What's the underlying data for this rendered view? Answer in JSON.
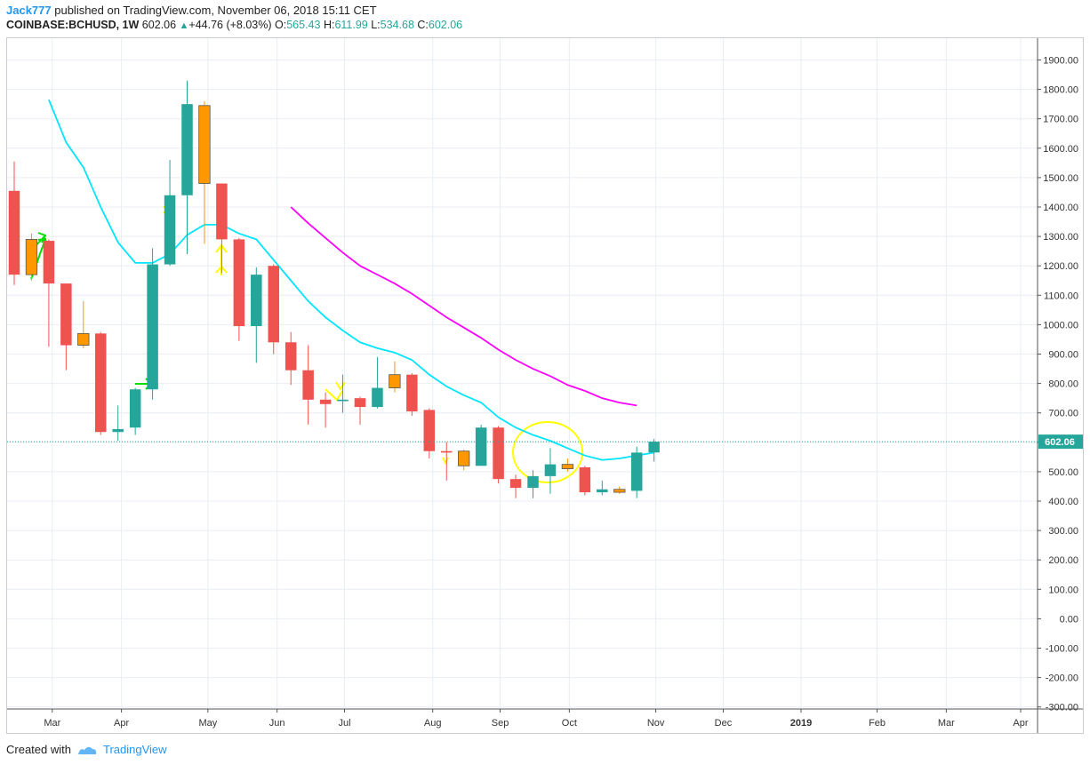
{
  "header": {
    "author": "Jack777",
    "published": " published on TradingView.com, November 06, 2018 15:11 CET",
    "symbol": "COINBASE:BCHUSD, 1W",
    "last": "602.06",
    "change": "+44.76 (+8.03%)",
    "o_label": "O:",
    "o_val": "565.43",
    "h_label": "H:",
    "h_val": "611.99",
    "l_label": "L:",
    "l_val": "534.68",
    "c_label": "C:",
    "c_val": "602.06"
  },
  "footer": {
    "created": "Created with",
    "brand": "TradingView"
  },
  "colors": {
    "up": "#26a69a",
    "down": "#ef5350",
    "highlight": "#ff9800",
    "ma_short": "#00e5ff",
    "ma_long": "#ff00ff",
    "grid": "#e8eef3",
    "last_line": "#26a69a",
    "circle": "#ffff00"
  },
  "chart_data": {
    "type": "candlestick",
    "title": "COINBASE:BCHUSD, 1W",
    "ylim": [
      -300,
      1900
    ],
    "y_ticks": [
      "1900.00",
      "1800.00",
      "1700.00",
      "1600.00",
      "1500.00",
      "1400.00",
      "1300.00",
      "1200.00",
      "1100.00",
      "1000.00",
      "900.00",
      "800.00",
      "700.00",
      "600.00",
      "500.00",
      "400.00",
      "300.00",
      "200.00",
      "100.00",
      "0.00",
      "-100.00",
      "-200.00",
      "-300.00"
    ],
    "x_ticks": [
      {
        "label": "Mar",
        "week": 2.2
      },
      {
        "label": "Apr",
        "week": 6.2
      },
      {
        "label": "May",
        "week": 11.2
      },
      {
        "label": "Jun",
        "week": 15.2
      },
      {
        "label": "Jul",
        "week": 19.1
      },
      {
        "label": "Aug",
        "week": 24.2
      },
      {
        "label": "Sep",
        "week": 28.1
      },
      {
        "label": "Oct",
        "week": 32.1
      },
      {
        "label": "Nov",
        "week": 37.1
      },
      {
        "label": "Dec",
        "week": 41.0
      },
      {
        "label": "2019",
        "week": 45.5,
        "bold": true
      },
      {
        "label": "Feb",
        "week": 49.9
      },
      {
        "label": "Mar",
        "week": 53.9
      },
      {
        "label": "Apr",
        "week": 58.2
      }
    ],
    "last_price": 602.06,
    "last_price_label": "602.06",
    "candles": [
      {
        "o": 1455,
        "h": 1555,
        "l": 1135,
        "c": 1170,
        "hl": false
      },
      {
        "o": 1170,
        "h": 1310,
        "l": 1150,
        "c": 1290,
        "hl": true
      },
      {
        "o": 1285,
        "h": 1290,
        "l": 925,
        "c": 1140,
        "hl": false
      },
      {
        "o": 1140,
        "h": 1140,
        "l": 845,
        "c": 930,
        "hl": false
      },
      {
        "o": 930,
        "h": 1080,
        "l": 920,
        "c": 970,
        "hl": true
      },
      {
        "o": 970,
        "h": 975,
        "l": 625,
        "c": 635,
        "hl": false
      },
      {
        "o": 635,
        "h": 725,
        "l": 605,
        "c": 645,
        "hl": false
      },
      {
        "o": 650,
        "h": 785,
        "l": 625,
        "c": 780,
        "hl": false
      },
      {
        "o": 780,
        "h": 1260,
        "l": 745,
        "c": 1205,
        "hl": false
      },
      {
        "o": 1205,
        "h": 1560,
        "l": 1200,
        "c": 1440,
        "hl": false
      },
      {
        "o": 1440,
        "h": 1830,
        "l": 1240,
        "c": 1750,
        "hl": false
      },
      {
        "o": 1745,
        "h": 1760,
        "l": 1275,
        "c": 1480,
        "hl": true
      },
      {
        "o": 1480,
        "h": 1480,
        "l": 1175,
        "c": 1290,
        "hl": false
      },
      {
        "o": 1290,
        "h": 1295,
        "l": 945,
        "c": 995,
        "hl": false
      },
      {
        "o": 995,
        "h": 1195,
        "l": 870,
        "c": 1170,
        "hl": false
      },
      {
        "o": 1200,
        "h": 1205,
        "l": 900,
        "c": 940,
        "hl": false
      },
      {
        "o": 940,
        "h": 975,
        "l": 795,
        "c": 845,
        "hl": false
      },
      {
        "o": 845,
        "h": 930,
        "l": 660,
        "c": 745,
        "hl": false
      },
      {
        "o": 745,
        "h": 770,
        "l": 650,
        "c": 730,
        "hl": false
      },
      {
        "o": 740,
        "h": 830,
        "l": 700,
        "c": 745,
        "hl": false
      },
      {
        "o": 750,
        "h": 755,
        "l": 660,
        "c": 720,
        "hl": false
      },
      {
        "o": 720,
        "h": 890,
        "l": 715,
        "c": 785,
        "hl": false
      },
      {
        "o": 785,
        "h": 875,
        "l": 770,
        "c": 830,
        "hl": true
      },
      {
        "o": 830,
        "h": 835,
        "l": 690,
        "c": 705,
        "hl": false
      },
      {
        "o": 710,
        "h": 715,
        "l": 545,
        "c": 570,
        "hl": false
      },
      {
        "o": 570,
        "h": 600,
        "l": 470,
        "c": 565,
        "hl": false
      },
      {
        "o": 570,
        "h": 575,
        "l": 505,
        "c": 520,
        "hl": true
      },
      {
        "o": 520,
        "h": 660,
        "l": 520,
        "c": 650,
        "hl": false
      },
      {
        "o": 650,
        "h": 655,
        "l": 460,
        "c": 475,
        "hl": false
      },
      {
        "o": 475,
        "h": 490,
        "l": 410,
        "c": 445,
        "hl": false
      },
      {
        "o": 445,
        "h": 505,
        "l": 410,
        "c": 485,
        "hl": false
      },
      {
        "o": 485,
        "h": 580,
        "l": 425,
        "c": 525,
        "hl": false
      },
      {
        "o": 525,
        "h": 545,
        "l": 500,
        "c": 510,
        "hl": true
      },
      {
        "o": 515,
        "h": 520,
        "l": 420,
        "c": 430,
        "hl": false
      },
      {
        "o": 430,
        "h": 470,
        "l": 420,
        "c": 440,
        "hl": false
      },
      {
        "o": 440,
        "h": 450,
        "l": 425,
        "c": 430,
        "hl": true
      },
      {
        "o": 435,
        "h": 585,
        "l": 410,
        "c": 565,
        "hl": false
      },
      {
        "o": 565.43,
        "h": 611.99,
        "l": 534.68,
        "c": 602.06,
        "hl": false
      }
    ],
    "series": [
      {
        "name": "MA short",
        "color": "#00e5ff",
        "points": [
          [
            2,
            1765
          ],
          [
            3,
            1620
          ],
          [
            4,
            1535
          ],
          [
            5,
            1400
          ],
          [
            6,
            1280
          ],
          [
            7,
            1210
          ],
          [
            8,
            1210
          ],
          [
            9,
            1240
          ],
          [
            10,
            1305
          ],
          [
            11,
            1340
          ],
          [
            12,
            1340
          ],
          [
            13,
            1310
          ],
          [
            14,
            1290
          ],
          [
            15,
            1220
          ],
          [
            16,
            1150
          ],
          [
            17,
            1080
          ],
          [
            18,
            1025
          ],
          [
            19,
            980
          ],
          [
            20,
            940
          ],
          [
            21,
            920
          ],
          [
            22,
            905
          ],
          [
            23,
            880
          ],
          [
            24,
            830
          ],
          [
            25,
            790
          ],
          [
            26,
            760
          ],
          [
            27,
            735
          ],
          [
            28,
            685
          ],
          [
            29,
            650
          ],
          [
            30,
            625
          ],
          [
            31,
            605
          ],
          [
            32,
            580
          ],
          [
            33,
            555
          ],
          [
            34,
            540
          ],
          [
            35,
            545
          ],
          [
            36,
            555
          ],
          [
            37,
            565
          ]
        ]
      },
      {
        "name": "MA long",
        "color": "#ff00ff",
        "points": [
          [
            16,
            1400
          ],
          [
            17,
            1345
          ],
          [
            18,
            1295
          ],
          [
            19,
            1245
          ],
          [
            20,
            1200
          ],
          [
            21,
            1170
          ],
          [
            22,
            1140
          ],
          [
            23,
            1105
          ],
          [
            24,
            1065
          ],
          [
            25,
            1025
          ],
          [
            26,
            990
          ],
          [
            27,
            955
          ],
          [
            28,
            915
          ],
          [
            29,
            880
          ],
          [
            30,
            850
          ],
          [
            31,
            825
          ],
          [
            32,
            795
          ],
          [
            33,
            775
          ],
          [
            34,
            750
          ],
          [
            35,
            735
          ],
          [
            36,
            725
          ]
        ]
      }
    ]
  }
}
